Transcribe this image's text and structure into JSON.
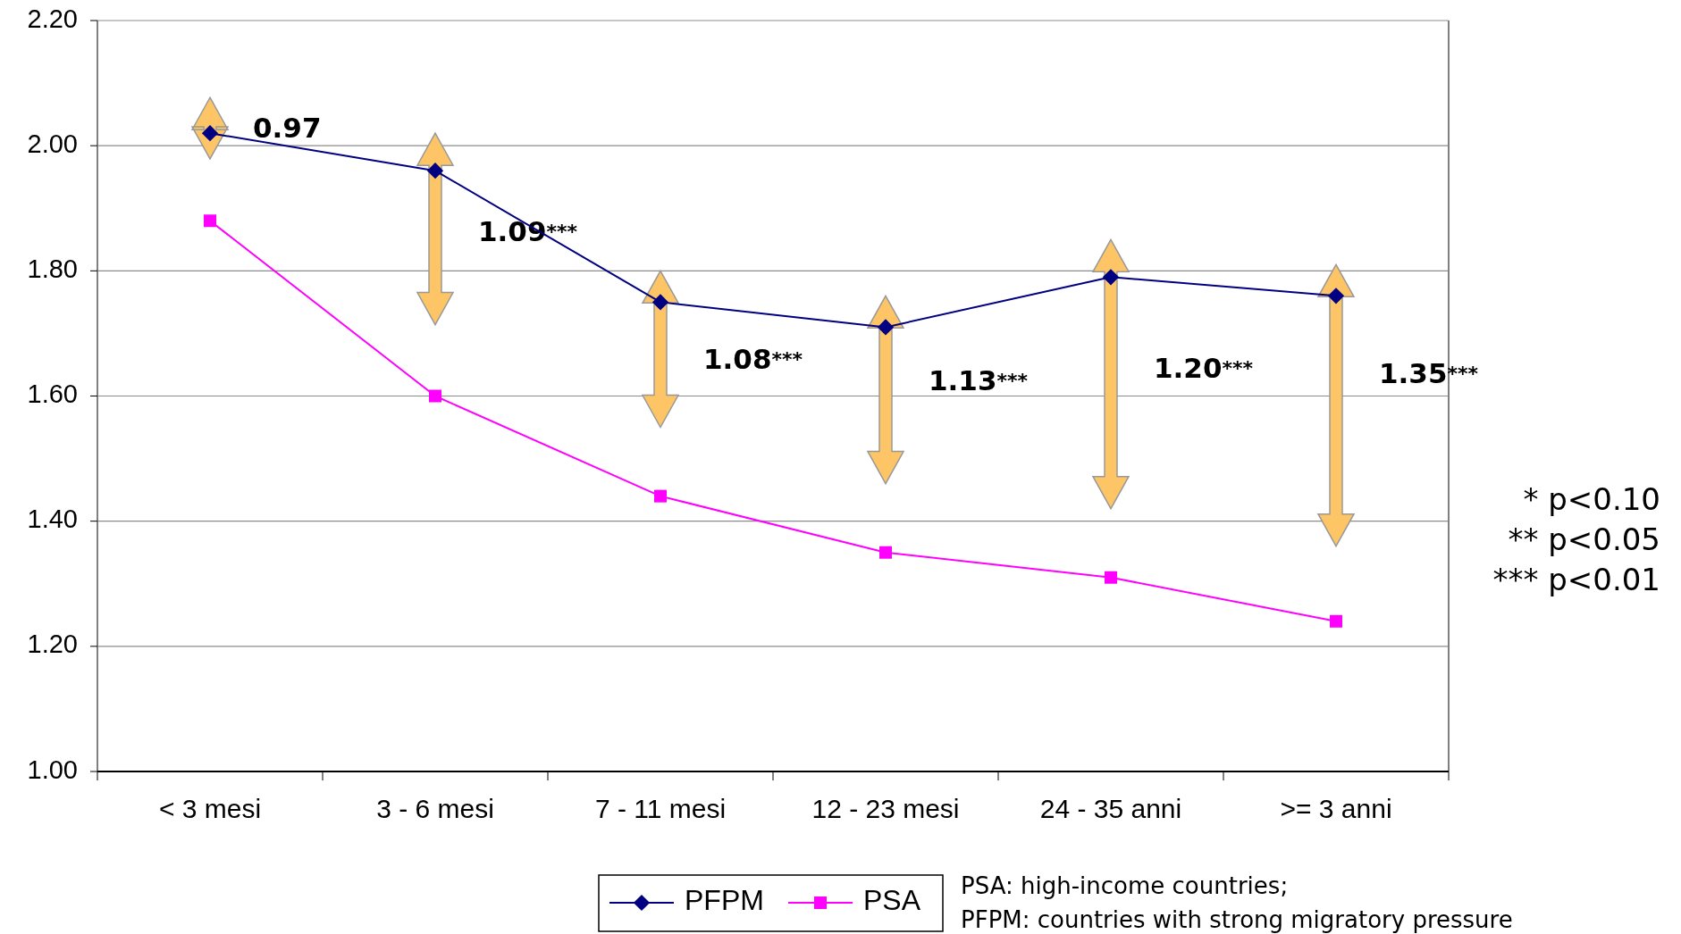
{
  "chart_data": {
    "type": "line",
    "categories": [
      "< 3 mesi",
      "3 - 6 mesi",
      "7 - 11 mesi",
      "12 - 23 mesi",
      "24 - 35 anni",
      ">= 3 anni"
    ],
    "series": [
      {
        "name": "PFPM",
        "color": "#000080",
        "marker": "diamond",
        "values": [
          2.02,
          1.96,
          1.75,
          1.71,
          1.79,
          1.76
        ]
      },
      {
        "name": "PSA",
        "color": "#ff00ff",
        "marker": "square",
        "values": [
          1.88,
          1.6,
          1.44,
          1.35,
          1.31,
          1.24
        ]
      }
    ],
    "ylim": [
      1,
      2.2
    ],
    "yticks": [
      {
        "value": 1,
        "label": "1.00"
      },
      {
        "value": 1.2,
        "label": "1.20"
      },
      {
        "value": 1.4,
        "label": "1.40"
      },
      {
        "value": 1.6,
        "label": "1.60"
      },
      {
        "value": 1.8,
        "label": "1.80"
      },
      {
        "value": 2,
        "label": "2.00"
      },
      {
        "value": 2.2,
        "label": "2.20"
      }
    ],
    "grid": "y",
    "legend": "bottom",
    "line_style": "solid",
    "annotations": [
      "0.97",
      "1.09***",
      "1.08***",
      "1.13***",
      "1.20***",
      "1.35***",
      "* p<0.10",
      "** p<0.05",
      "*** p<0.01",
      "PSA: high-income countries;",
      "PFPM: countries with strong migratory pressure"
    ]
  }
}
